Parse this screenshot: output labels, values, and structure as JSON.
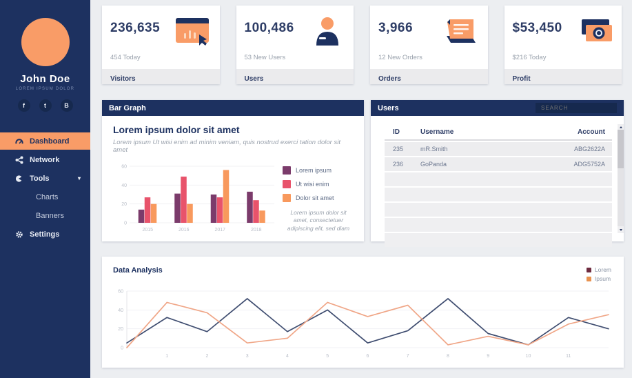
{
  "colors": {
    "navy": "#1d3160",
    "navy_dark": "#16294e",
    "accent_orange": "#f99c67",
    "grid": "#f0f0f3",
    "tick_text": "#b9bec8"
  },
  "sidebar": {
    "name": "John Doe",
    "subtitle": "LOREM IPSUM DOLOR",
    "caret": "▾",
    "social": [
      {
        "label": "f"
      },
      {
        "label": "t"
      },
      {
        "label": "B"
      }
    ],
    "nav": [
      {
        "label": "Dashboard"
      },
      {
        "label": "Network"
      },
      {
        "label": "Tools"
      },
      {
        "label": "Charts"
      },
      {
        "label": "Banners"
      },
      {
        "label": "Settings"
      }
    ]
  },
  "stats": [
    {
      "value": "236,635",
      "sub": "454 Today",
      "footer": "Visitors"
    },
    {
      "value": "100,486",
      "sub": "53 New Users",
      "footer": "Users"
    },
    {
      "value": "3,966",
      "sub": "12 New Orders",
      "footer": "Orders"
    },
    {
      "value": "$53,450",
      "sub": "$216 Today",
      "footer": "Profit"
    }
  ],
  "bar_card": {
    "header": "Bar Graph",
    "title": "Lorem ipsum dolor sit amet",
    "subtitle": "Lorem ipsum Ut wisi enim ad minim veniam, quis nostrud exerci tation dolor sit amet",
    "caption": "Lorem ipsum dolor sit amet, consectetuer adipiscing elit, sed diam"
  },
  "users_card": {
    "header": "Users",
    "search_placeholder": "SEARCH",
    "table": {
      "columns": [
        "ID",
        "Username",
        "Account"
      ],
      "rows": [
        {
          "id": "235",
          "username": "mR.Smith",
          "account": "ABG2622A"
        },
        {
          "id": "236",
          "username": "GoPanda",
          "account": "ADG5752A"
        }
      ]
    }
  },
  "line_card": {
    "title": "Data Analysis"
  },
  "chart_data": [
    {
      "type": "bar",
      "title": "Lorem ipsum dolor sit amet",
      "categories": [
        "2015",
        "2016",
        "2017",
        "2018"
      ],
      "series": [
        {
          "name": "Lorem ipsum",
          "color": "#7b3b6b",
          "values": [
            14,
            31,
            30,
            33
          ]
        },
        {
          "name": "Ut wisi enim",
          "color": "#e8536b",
          "values": [
            27,
            49,
            27,
            24
          ]
        },
        {
          "name": "Dolor sit amet",
          "color": "#f8995d",
          "values": [
            20,
            20,
            56,
            13
          ]
        }
      ],
      "ylim": [
        0,
        60
      ],
      "yticks": [
        0,
        20,
        40,
        60
      ],
      "grid": true,
      "legend_position": "right"
    },
    {
      "type": "line",
      "title": "Data Analysis",
      "x": [
        0,
        1,
        2,
        3,
        4,
        5,
        6,
        7,
        8,
        9,
        10,
        11,
        12
      ],
      "xticks": [
        1,
        2,
        3,
        4,
        5,
        6,
        7,
        8,
        9,
        10,
        11
      ],
      "series": [
        {
          "name": "Lorem",
          "color": "#3f4d70",
          "swatch": "#6e2b3f",
          "values": [
            5,
            32,
            17,
            52,
            17,
            40,
            5,
            18,
            52,
            15,
            3,
            32,
            20
          ]
        },
        {
          "name": "Ipsum",
          "color": "#f0a687",
          "swatch": "#e8924f",
          "values": [
            0,
            48,
            37,
            5,
            10,
            48,
            33,
            45,
            3,
            12,
            3,
            25,
            35
          ]
        }
      ],
      "ylim": [
        0,
        60
      ],
      "yticks": [
        0,
        20,
        40,
        60
      ],
      "grid": true,
      "legend_position": "top-right"
    }
  ]
}
